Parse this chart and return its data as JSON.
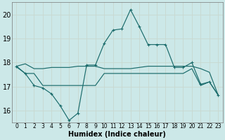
{
  "title": "",
  "xlabel": "Humidex (Indice chaleur)",
  "bg_color": "#cce8e8",
  "grid_color": "#b8d8d8",
  "line_color": "#1a6b6b",
  "x_ticks": [
    0,
    1,
    2,
    3,
    4,
    5,
    6,
    7,
    8,
    9,
    10,
    11,
    12,
    13,
    14,
    15,
    16,
    17,
    18,
    19,
    20,
    21,
    22,
    23
  ],
  "ylim": [
    15.5,
    20.5
  ],
  "xlim": [
    -0.5,
    23.5
  ],
  "yticks": [
    16,
    17,
    18,
    19,
    20
  ],
  "series1_x": [
    0,
    1,
    2,
    3,
    4,
    5,
    6,
    7,
    8,
    9,
    10,
    11,
    12,
    13,
    14,
    15,
    16,
    17,
    18,
    19,
    20,
    21,
    22,
    23
  ],
  "series1_y": [
    17.85,
    17.95,
    17.75,
    17.75,
    17.8,
    17.8,
    17.8,
    17.85,
    17.85,
    17.85,
    17.75,
    17.75,
    17.75,
    17.75,
    17.8,
    17.85,
    17.85,
    17.85,
    17.85,
    17.85,
    17.85,
    17.75,
    17.6,
    16.65
  ],
  "series2_x": [
    0,
    1,
    2,
    3,
    4,
    5,
    6,
    7,
    8,
    9,
    10,
    11,
    12,
    13,
    14,
    15,
    16,
    17,
    18,
    19,
    20,
    21,
    22,
    23
  ],
  "series2_y": [
    17.82,
    17.55,
    17.55,
    17.05,
    17.05,
    17.05,
    17.05,
    17.05,
    17.05,
    17.05,
    17.55,
    17.55,
    17.55,
    17.55,
    17.55,
    17.55,
    17.55,
    17.55,
    17.55,
    17.55,
    17.75,
    17.05,
    17.2,
    16.65
  ],
  "series3_x": [
    0,
    1,
    2,
    3,
    4,
    5,
    6,
    7,
    8,
    9,
    10,
    11,
    12,
    13,
    14,
    15,
    16,
    17,
    18,
    19,
    20,
    21,
    22,
    23
  ],
  "series3_y": [
    17.85,
    17.55,
    17.05,
    16.95,
    16.7,
    16.2,
    15.6,
    15.9,
    17.9,
    17.9,
    18.8,
    19.35,
    19.4,
    20.2,
    19.5,
    18.75,
    18.75,
    18.75,
    17.8,
    17.8,
    18.0,
    17.1,
    17.2,
    16.65
  ]
}
